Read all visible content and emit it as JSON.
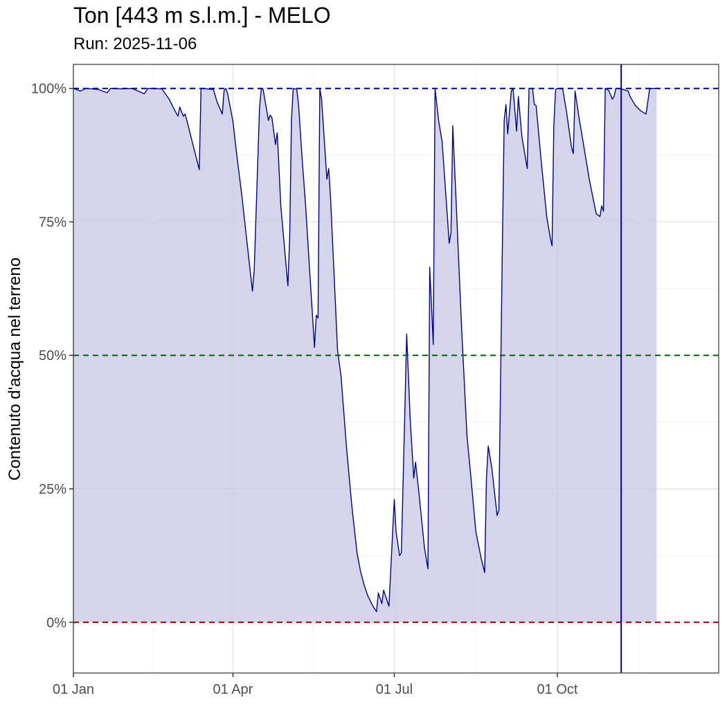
{
  "chart_data": {
    "type": "area",
    "title": "Ton [443 m s.l.m.] - MELO",
    "subtitle": "Run: 2025-11-06",
    "xlabel": "",
    "ylabel": "Contenuto d'acqua nel terreno",
    "x_axis": {
      "type": "date",
      "range": [
        "2025-01-01",
        "2025-12-31"
      ],
      "ticks": [
        {
          "date": "2025-01-01",
          "label": "01 Jan"
        },
        {
          "date": "2025-04-01",
          "label": "01 Apr"
        },
        {
          "date": "2025-07-01",
          "label": "01 Jul"
        },
        {
          "date": "2025-10-01",
          "label": "01 Oct"
        }
      ]
    },
    "y_axis": {
      "range": [
        -9.5,
        104.5
      ],
      "ticks": [
        {
          "value": 0,
          "label": "0%"
        },
        {
          "value": 25,
          "label": "25%"
        },
        {
          "value": 50,
          "label": "50%"
        },
        {
          "value": 75,
          "label": "75%"
        },
        {
          "value": 100,
          "label": "100%"
        }
      ]
    },
    "grid": true,
    "reference_lines": [
      {
        "value": 100,
        "color": "#00008b",
        "style": "dashed"
      },
      {
        "value": 50,
        "color": "#006400",
        "style": "dashed"
      },
      {
        "value": 0,
        "color": "#8b0000",
        "style": "dashed"
      }
    ],
    "vertical_marker": {
      "date": "2025-11-06",
      "color": "#00008b"
    },
    "series": [
      {
        "color": "#00008b",
        "fill": "#cccce8",
        "points": [
          [
            "2025-01-01",
            100
          ],
          [
            "2025-01-05",
            99.5
          ],
          [
            "2025-01-08",
            100
          ],
          [
            "2025-01-15",
            99.8
          ],
          [
            "2025-01-20",
            99.2
          ],
          [
            "2025-01-22",
            100
          ],
          [
            "2025-01-28",
            99.9
          ],
          [
            "2025-02-03",
            100
          ],
          [
            "2025-02-10",
            99
          ],
          [
            "2025-02-12",
            100
          ],
          [
            "2025-02-20",
            99.9
          ],
          [
            "2025-02-24",
            98
          ],
          [
            "2025-02-27",
            96
          ],
          [
            "2025-03-01",
            94.8
          ],
          [
            "2025-03-02",
            96.5
          ],
          [
            "2025-03-04",
            94.8
          ],
          [
            "2025-03-05",
            95.2
          ],
          [
            "2025-03-06",
            94
          ],
          [
            "2025-03-13",
            84.8
          ],
          [
            "2025-03-14",
            100
          ],
          [
            "2025-03-21",
            99.8
          ],
          [
            "2025-03-23",
            97.5
          ],
          [
            "2025-03-26",
            95.2
          ],
          [
            "2025-03-27",
            99.6
          ],
          [
            "2025-03-28",
            100
          ],
          [
            "2025-03-29",
            99
          ],
          [
            "2025-04-01",
            93.8
          ],
          [
            "2025-04-03",
            88
          ],
          [
            "2025-04-06",
            80
          ],
          [
            "2025-04-09",
            71
          ],
          [
            "2025-04-12",
            62
          ],
          [
            "2025-04-13",
            66
          ],
          [
            "2025-04-16",
            96.5
          ],
          [
            "2025-04-17",
            100
          ],
          [
            "2025-04-18",
            99.8
          ],
          [
            "2025-04-20",
            96
          ],
          [
            "2025-04-21",
            94
          ],
          [
            "2025-04-22",
            95
          ],
          [
            "2025-04-23",
            94.5
          ],
          [
            "2025-04-25",
            89.5
          ],
          [
            "2025-04-26",
            91.7
          ],
          [
            "2025-04-28",
            78
          ],
          [
            "2025-05-02",
            63
          ],
          [
            "2025-05-03",
            72
          ],
          [
            "2025-05-04",
            94
          ],
          [
            "2025-05-05",
            100
          ],
          [
            "2025-05-07",
            99.8
          ],
          [
            "2025-05-08",
            97
          ],
          [
            "2025-05-10",
            87
          ],
          [
            "2025-05-12",
            78
          ],
          [
            "2025-05-15",
            62
          ],
          [
            "2025-05-17",
            51.5
          ],
          [
            "2025-05-18",
            57.5
          ],
          [
            "2025-05-19",
            57
          ],
          [
            "2025-05-20",
            100
          ],
          [
            "2025-05-21",
            98
          ],
          [
            "2025-05-24",
            83
          ],
          [
            "2025-05-25",
            85
          ],
          [
            "2025-05-26",
            80
          ],
          [
            "2025-05-30",
            51
          ],
          [
            "2025-06-01",
            46
          ],
          [
            "2025-06-04",
            33
          ],
          [
            "2025-06-07",
            22
          ],
          [
            "2025-06-10",
            13
          ],
          [
            "2025-06-12",
            9.5
          ],
          [
            "2025-06-14",
            7
          ],
          [
            "2025-06-16",
            5
          ],
          [
            "2025-06-19",
            3
          ],
          [
            "2025-06-21",
            2
          ],
          [
            "2025-06-22",
            5.5
          ],
          [
            "2025-06-24",
            3.5
          ],
          [
            "2025-06-25",
            6
          ],
          [
            "2025-06-28",
            3
          ],
          [
            "2025-07-01",
            23
          ],
          [
            "2025-07-02",
            17
          ],
          [
            "2025-07-04",
            12.5
          ],
          [
            "2025-07-05",
            13
          ],
          [
            "2025-07-07",
            40
          ],
          [
            "2025-07-08",
            54
          ],
          [
            "2025-07-10",
            38
          ],
          [
            "2025-07-12",
            27
          ],
          [
            "2025-07-13",
            30
          ],
          [
            "2025-07-15",
            24
          ],
          [
            "2025-07-18",
            14
          ],
          [
            "2025-07-20",
            10
          ],
          [
            "2025-07-21",
            66.5
          ],
          [
            "2025-07-23",
            52
          ],
          [
            "2025-07-24",
            100
          ],
          [
            "2025-07-26",
            94
          ],
          [
            "2025-07-28",
            90
          ],
          [
            "2025-08-01",
            71
          ],
          [
            "2025-08-02",
            73
          ],
          [
            "2025-08-03",
            93
          ],
          [
            "2025-08-05",
            78
          ],
          [
            "2025-08-08",
            55
          ],
          [
            "2025-08-11",
            35
          ],
          [
            "2025-08-13",
            28
          ],
          [
            "2025-08-16",
            17
          ],
          [
            "2025-08-19",
            12
          ],
          [
            "2025-08-21",
            9.3
          ],
          [
            "2025-08-22",
            27
          ],
          [
            "2025-08-23",
            33
          ],
          [
            "2025-08-25",
            29
          ],
          [
            "2025-08-28",
            20
          ],
          [
            "2025-08-29",
            21
          ],
          [
            "2025-08-31",
            71
          ],
          [
            "2025-09-01",
            94
          ],
          [
            "2025-09-02",
            97
          ],
          [
            "2025-09-03",
            91.5
          ],
          [
            "2025-09-05",
            99.5
          ],
          [
            "2025-09-06",
            100
          ],
          [
            "2025-09-07",
            96
          ],
          [
            "2025-09-08",
            92
          ],
          [
            "2025-09-09",
            98.5
          ],
          [
            "2025-09-11",
            91
          ],
          [
            "2025-09-14",
            85
          ],
          [
            "2025-09-15",
            100
          ],
          [
            "2025-09-17",
            100
          ],
          [
            "2025-09-18",
            97
          ],
          [
            "2025-09-19",
            96.8
          ],
          [
            "2025-09-22",
            86
          ],
          [
            "2025-09-25",
            76
          ],
          [
            "2025-09-27",
            72
          ],
          [
            "2025-09-28",
            70.5
          ],
          [
            "2025-09-29",
            93
          ],
          [
            "2025-09-30",
            99.8
          ],
          [
            "2025-10-01",
            100
          ],
          [
            "2025-10-04",
            99.9
          ],
          [
            "2025-10-06",
            96
          ],
          [
            "2025-10-09",
            89
          ],
          [
            "2025-10-10",
            87.8
          ],
          [
            "2025-10-11",
            99.5
          ],
          [
            "2025-10-13",
            95
          ],
          [
            "2025-10-16",
            89
          ],
          [
            "2025-10-19",
            83
          ],
          [
            "2025-10-22",
            78
          ],
          [
            "2025-10-23",
            76.5
          ],
          [
            "2025-10-25",
            76
          ],
          [
            "2025-10-26",
            78
          ],
          [
            "2025-10-27",
            77
          ],
          [
            "2025-10-28",
            100
          ],
          [
            "2025-10-30",
            99.6
          ],
          [
            "2025-11-01",
            98
          ],
          [
            "2025-11-02",
            98.5
          ],
          [
            "2025-11-03",
            100
          ],
          [
            "2025-11-06",
            99.9
          ],
          [
            "2025-11-10",
            99.5
          ],
          [
            "2025-11-11",
            98.5
          ],
          [
            "2025-11-14",
            96.8
          ],
          [
            "2025-11-17",
            95.8
          ],
          [
            "2025-11-20",
            95.2
          ],
          [
            "2025-11-22",
            99.8
          ],
          [
            "2025-11-23",
            100
          ],
          [
            "2025-11-26",
            100
          ]
        ]
      }
    ]
  }
}
